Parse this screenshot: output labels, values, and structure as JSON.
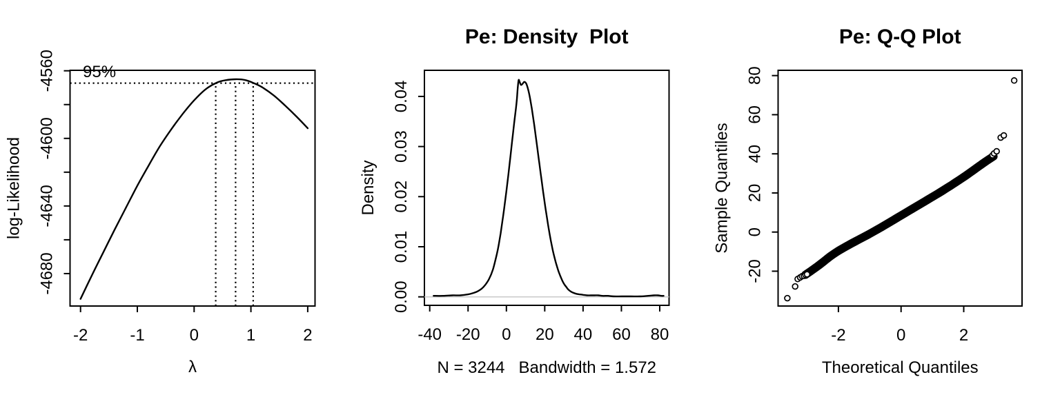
{
  "figure": {
    "background": "#ffffff",
    "ink": "#000000",
    "grid": false
  },
  "chart_data": [
    {
      "id": "boxcox-profile-likelihood",
      "type": "line",
      "title": "",
      "xlabel": "λ",
      "ylabel": "log-Likelihood",
      "xlim": [
        -2.18,
        2.13
      ],
      "ylim": [
        -4700,
        -4560
      ],
      "legend": "none",
      "x_ticks": [
        {
          "v": -2,
          "label": "-2"
        },
        {
          "v": -1,
          "label": "-1"
        },
        {
          "v": 0,
          "label": "0"
        },
        {
          "v": 1,
          "label": "1"
        },
        {
          "v": 2,
          "label": "2"
        }
      ],
      "y_ticks": [
        {
          "v": -4680,
          "label": "-4680"
        },
        {
          "v": -4660,
          "label": ""
        },
        {
          "v": -4640,
          "label": "-4640"
        },
        {
          "v": -4620,
          "label": ""
        },
        {
          "v": -4600,
          "label": "-4600"
        },
        {
          "v": -4580,
          "label": ""
        },
        {
          "v": -4560,
          "label": "-4560"
        }
      ],
      "ci": {
        "label": "95%",
        "level": -4567.3,
        "lambda_lower": 0.38,
        "lambda_hat": 0.73,
        "lambda_upper": 1.04,
        "line_style": "dotted"
      },
      "curve": [
        [
          -2.0,
          -4695
        ],
        [
          -1.8,
          -4681
        ],
        [
          -1.6,
          -4667.5
        ],
        [
          -1.4,
          -4654
        ],
        [
          -1.2,
          -4641
        ],
        [
          -1.0,
          -4628
        ],
        [
          -0.8,
          -4616
        ],
        [
          -0.6,
          -4604.5
        ],
        [
          -0.4,
          -4594.5
        ],
        [
          -0.2,
          -4585.5
        ],
        [
          0.0,
          -4577.5
        ],
        [
          0.2,
          -4571
        ],
        [
          0.4,
          -4567
        ],
        [
          0.55,
          -4565.6
        ],
        [
          0.73,
          -4565
        ],
        [
          0.9,
          -4565.5
        ],
        [
          1.05,
          -4567.3
        ],
        [
          1.2,
          -4569.8
        ],
        [
          1.4,
          -4574.5
        ],
        [
          1.6,
          -4580.5
        ],
        [
          1.8,
          -4587
        ],
        [
          2.0,
          -4594
        ]
      ]
    },
    {
      "id": "pe-density",
      "type": "line",
      "title": "Pe: Density  Plot",
      "xlabel": "N = 3244   Bandwidth = 1.572",
      "ylabel": "Density",
      "n": 3244,
      "bandwidth": 1.572,
      "xlim": [
        -42.8,
        84.7
      ],
      "ylim": [
        -0.0016,
        0.0451
      ],
      "zero_line_color": "#c8c8c8",
      "x_ticks": [
        {
          "v": -40,
          "label": "-40"
        },
        {
          "v": -20,
          "label": "-20"
        },
        {
          "v": 0,
          "label": "0"
        },
        {
          "v": 20,
          "label": "20"
        },
        {
          "v": 40,
          "label": "40"
        },
        {
          "v": 60,
          "label": "60"
        },
        {
          "v": 80,
          "label": "80"
        }
      ],
      "y_ticks": [
        {
          "v": 0,
          "label": "0.00"
        },
        {
          "v": 0.01,
          "label": "0.01"
        },
        {
          "v": 0.02,
          "label": "0.02"
        },
        {
          "v": 0.03,
          "label": "0.03"
        },
        {
          "v": 0.04,
          "label": "0.04"
        }
      ],
      "curve": [
        [
          -38,
          0.0002
        ],
        [
          -33,
          0.0002
        ],
        [
          -28,
          0.0003
        ],
        [
          -24,
          0.0003
        ],
        [
          -20,
          0.0005
        ],
        [
          -17,
          0.0008
        ],
        [
          -15,
          0.0011
        ],
        [
          -13,
          0.0016
        ],
        [
          -11,
          0.0024
        ],
        [
          -9,
          0.0036
        ],
        [
          -7,
          0.0055
        ],
        [
          -5,
          0.0085
        ],
        [
          -4,
          0.0104
        ],
        [
          -3,
          0.0127
        ],
        [
          -2,
          0.0153
        ],
        [
          -1,
          0.0181
        ],
        [
          0,
          0.0211
        ],
        [
          1,
          0.0243
        ],
        [
          2,
          0.0277
        ],
        [
          3,
          0.0311
        ],
        [
          4,
          0.0345
        ],
        [
          5,
          0.0377
        ],
        [
          5.5,
          0.0396
        ],
        [
          6,
          0.0421
        ],
        [
          6.4,
          0.0433
        ],
        [
          6.9,
          0.0429
        ],
        [
          7.6,
          0.0423
        ],
        [
          8.4,
          0.0425
        ],
        [
          9.3,
          0.0429
        ],
        [
          10.3,
          0.0426
        ],
        [
          11.2,
          0.0416
        ],
        [
          12.2,
          0.0399
        ],
        [
          13.2,
          0.0377
        ],
        [
          14.2,
          0.0352
        ],
        [
          15.2,
          0.0324
        ],
        [
          16.2,
          0.0295
        ],
        [
          17.2,
          0.0266
        ],
        [
          18.2,
          0.0237
        ],
        [
          19.2,
          0.0209
        ],
        [
          20.2,
          0.0182
        ],
        [
          21.2,
          0.0157
        ],
        [
          22.2,
          0.0133
        ],
        [
          23.2,
          0.0112
        ],
        [
          24.2,
          0.0093
        ],
        [
          25.2,
          0.0077
        ],
        [
          26.2,
          0.0063
        ],
        [
          27.2,
          0.0051
        ],
        [
          28.2,
          0.0041
        ],
        [
          29.2,
          0.0032
        ],
        [
          30.2,
          0.0025
        ],
        [
          31.2,
          0.002
        ],
        [
          32.2,
          0.0015
        ],
        [
          33.5,
          0.0011
        ],
        [
          35,
          0.0008
        ],
        [
          36.5,
          0.0006
        ],
        [
          38,
          0.0005
        ],
        [
          40,
          0.0004
        ],
        [
          42,
          0.0003
        ],
        [
          44,
          0.0003
        ],
        [
          46,
          0.0003
        ],
        [
          48,
          0.0003
        ],
        [
          50,
          0.0002
        ],
        [
          53,
          0.0002
        ],
        [
          56,
          0.0001
        ],
        [
          60,
          0.0001
        ],
        [
          65,
          0.0001
        ],
        [
          70,
          0.0001
        ],
        [
          74,
          0.0002
        ],
        [
          77,
          0.0003
        ],
        [
          79,
          0.0003
        ],
        [
          81,
          0.0002
        ],
        [
          82,
          0.0002
        ]
      ]
    },
    {
      "id": "pe-qq",
      "type": "scatter",
      "title": "Pe: Q-Q Plot",
      "xlabel": "Theoretical Quantiles",
      "ylabel": "Sample Quantiles",
      "xlim": [
        -3.92,
        3.87
      ],
      "ylim": [
        -38.2,
        82.4
      ],
      "marker": "open-circle",
      "x_ticks": [
        {
          "v": -2,
          "label": "-2"
        },
        {
          "v": 0,
          "label": "0"
        },
        {
          "v": 2,
          "label": "2"
        }
      ],
      "y_ticks": [
        {
          "v": -20,
          "label": "-20"
        },
        {
          "v": 0,
          "label": "0"
        },
        {
          "v": 20,
          "label": "20"
        },
        {
          "v": 40,
          "label": "40"
        },
        {
          "v": 60,
          "label": "60"
        },
        {
          "v": 80,
          "label": "80"
        }
      ],
      "band": [
        [
          -3.05,
          -21.8
        ],
        [
          -2.85,
          -19.6
        ],
        [
          -2.65,
          -17.3
        ],
        [
          -2.45,
          -14.8
        ],
        [
          -2.25,
          -12.3
        ],
        [
          -2.05,
          -10.1
        ],
        [
          -1.85,
          -8.2
        ],
        [
          -1.65,
          -6.4
        ],
        [
          -1.45,
          -4.7
        ],
        [
          -1.25,
          -3.0
        ],
        [
          -1.05,
          -1.3
        ],
        [
          -0.85,
          0.5
        ],
        [
          -0.65,
          2.3
        ],
        [
          -0.45,
          4.2
        ],
        [
          -0.25,
          6.1
        ],
        [
          -0.05,
          8.0
        ],
        [
          0.15,
          9.9
        ],
        [
          0.35,
          11.8
        ],
        [
          0.55,
          13.7
        ],
        [
          0.75,
          15.6
        ],
        [
          0.95,
          17.5
        ],
        [
          1.15,
          19.4
        ],
        [
          1.35,
          21.4
        ],
        [
          1.55,
          23.4
        ],
        [
          1.75,
          25.5
        ],
        [
          1.95,
          27.6
        ],
        [
          2.15,
          29.8
        ],
        [
          2.35,
          32.1
        ],
        [
          2.55,
          34.4
        ],
        [
          2.75,
          36.6
        ],
        [
          2.95,
          38.7
        ]
      ],
      "outliers": [
        [
          -3.63,
          -33.8
        ],
        [
          -3.38,
          -27.8
        ],
        [
          -3.3,
          -24.0
        ],
        [
          -3.22,
          -23.2
        ],
        [
          -3.16,
          -22.6
        ],
        [
          -3.1,
          -22.4
        ],
        [
          -3.05,
          -21.9
        ],
        [
          -3.0,
          -21.6
        ],
        [
          2.92,
          39.3
        ],
        [
          2.97,
          40.2
        ],
        [
          3.05,
          41.3
        ],
        [
          3.18,
          48.3
        ],
        [
          3.28,
          49.4
        ],
        [
          3.61,
          77.5
        ]
      ]
    }
  ]
}
